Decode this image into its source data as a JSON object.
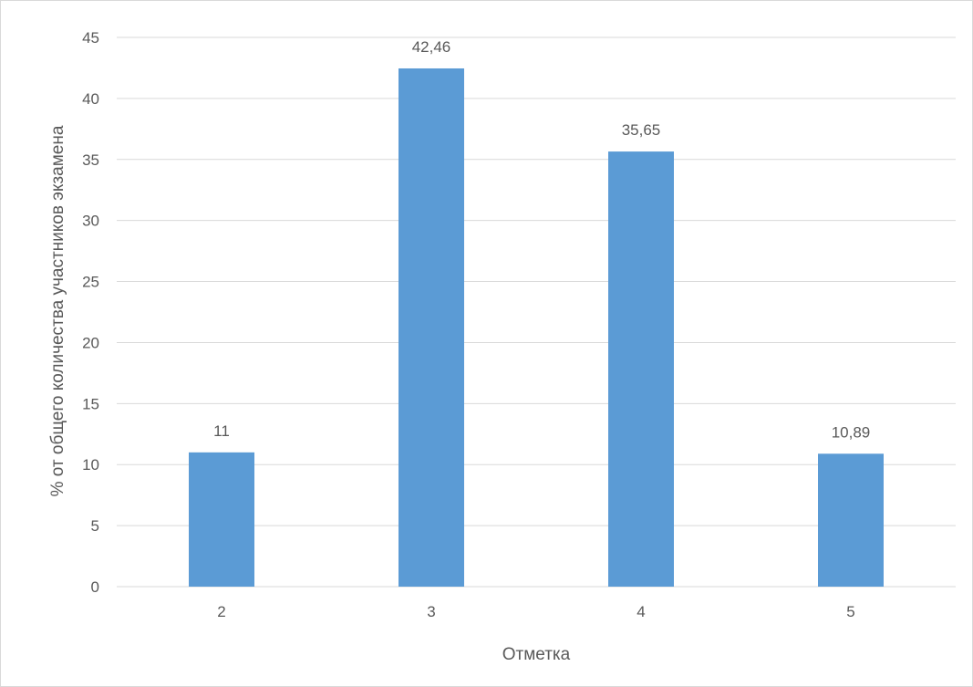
{
  "chart_data": {
    "type": "bar",
    "title": "",
    "xlabel": "Отметка",
    "ylabel": "% от общего количества участников экзамена",
    "categories": [
      "2",
      "3",
      "4",
      "5"
    ],
    "series": [
      {
        "values": [
          11,
          42.46,
          35.65,
          10.89
        ],
        "data_labels": [
          "11",
          "42,46",
          "35,65",
          "10,89"
        ]
      }
    ],
    "ylim": [
      0,
      45
    ],
    "y_ticks": [
      0,
      5,
      10,
      15,
      20,
      25,
      30,
      35,
      40,
      45
    ],
    "grid": true,
    "legend": "none",
    "bar_color": "#5b9bd5",
    "grid_color": "#d9d9d9",
    "text_color": "#595959"
  }
}
